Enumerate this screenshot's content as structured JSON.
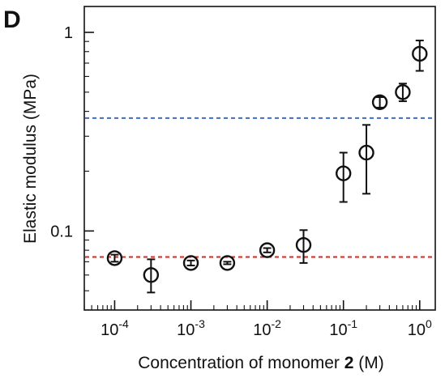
{
  "panel_label": "D",
  "chart_data": {
    "type": "scatter",
    "title": "",
    "xlabel": {
      "prefix": "Concentration of monomer ",
      "bold": "2",
      "suffix": " (M)"
    },
    "ylabel": "Elastic modulus (MPa)",
    "xscale": "log",
    "yscale": "log",
    "xlim": [
      4e-05,
      1.6
    ],
    "ylim": [
      0.04,
      1.35
    ],
    "grid": false,
    "legend": "none",
    "xticks": [
      {
        "value": 0.0001,
        "base": "10",
        "exp": "-4"
      },
      {
        "value": 0.001,
        "base": "10",
        "exp": "-3"
      },
      {
        "value": 0.01,
        "base": "10",
        "exp": "-2"
      },
      {
        "value": 0.1,
        "base": "10",
        "exp": "-1"
      },
      {
        "value": 1,
        "base": "10",
        "exp": "0"
      }
    ],
    "yticks": [
      {
        "value": 0.1,
        "label": "0.1"
      },
      {
        "value": 1,
        "label": "1"
      }
    ],
    "points": [
      {
        "x": 0.0001,
        "y": 0.073,
        "err_low": 0.07,
        "err_high": 0.076
      },
      {
        "x": 0.0003,
        "y": 0.06,
        "err_low": 0.049,
        "err_high": 0.072
      },
      {
        "x": 0.001,
        "y": 0.069,
        "err_low": 0.067,
        "err_high": 0.071
      },
      {
        "x": 0.003,
        "y": 0.069,
        "err_low": 0.068,
        "err_high": 0.07
      },
      {
        "x": 0.01,
        "y": 0.08,
        "err_low": 0.078,
        "err_high": 0.082
      },
      {
        "x": 0.03,
        "y": 0.085,
        "err_low": 0.069,
        "err_high": 0.101
      },
      {
        "x": 0.1,
        "y": 0.195,
        "err_low": 0.14,
        "err_high": 0.248
      },
      {
        "x": 0.2,
        "y": 0.248,
        "err_low": 0.154,
        "err_high": 0.342
      },
      {
        "x": 0.3,
        "y": 0.445,
        "err_low": 0.418,
        "err_high": 0.472
      },
      {
        "x": 0.6,
        "y": 0.5,
        "err_low": 0.45,
        "err_high": 0.552
      },
      {
        "x": 1.0,
        "y": 0.78,
        "err_low": 0.64,
        "err_high": 0.91
      }
    ],
    "reference_lines": [
      {
        "y": 0.37,
        "color": "#3f6fc4",
        "style": "dashed"
      },
      {
        "y": 0.074,
        "color": "#e0241c",
        "style": "dashed"
      }
    ]
  }
}
